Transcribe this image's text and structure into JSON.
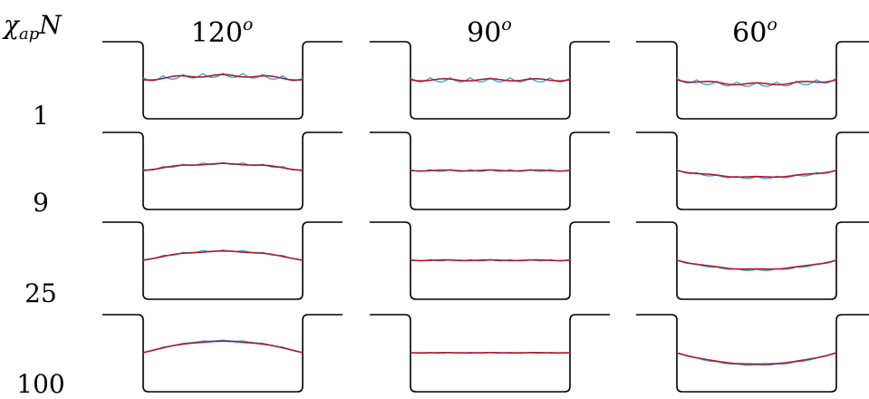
{
  "row_axis": {
    "symbol": "χ",
    "subscript": "ap",
    "suffix": "N"
  },
  "columns": [
    {
      "base": "120",
      "sup": "o",
      "curvature": 0.55
    },
    {
      "base": "90",
      "sup": "o",
      "curvature": 0.0
    },
    {
      "base": "60",
      "sup": "o",
      "curvature": -0.55
    }
  ],
  "rows": [
    {
      "label": "1",
      "strength": 0.35,
      "wiggle": 1.0
    },
    {
      "label": "9",
      "strength": 0.55,
      "wiggle": 0.45
    },
    {
      "label": "25",
      "strength": 0.75,
      "wiggle": 0.3
    },
    {
      "label": "100",
      "strength": 0.95,
      "wiggle": 0.15
    }
  ],
  "colors": {
    "wall": "#000000",
    "profile_a": "#b0182a",
    "profile_b": "#29a8e0"
  }
}
